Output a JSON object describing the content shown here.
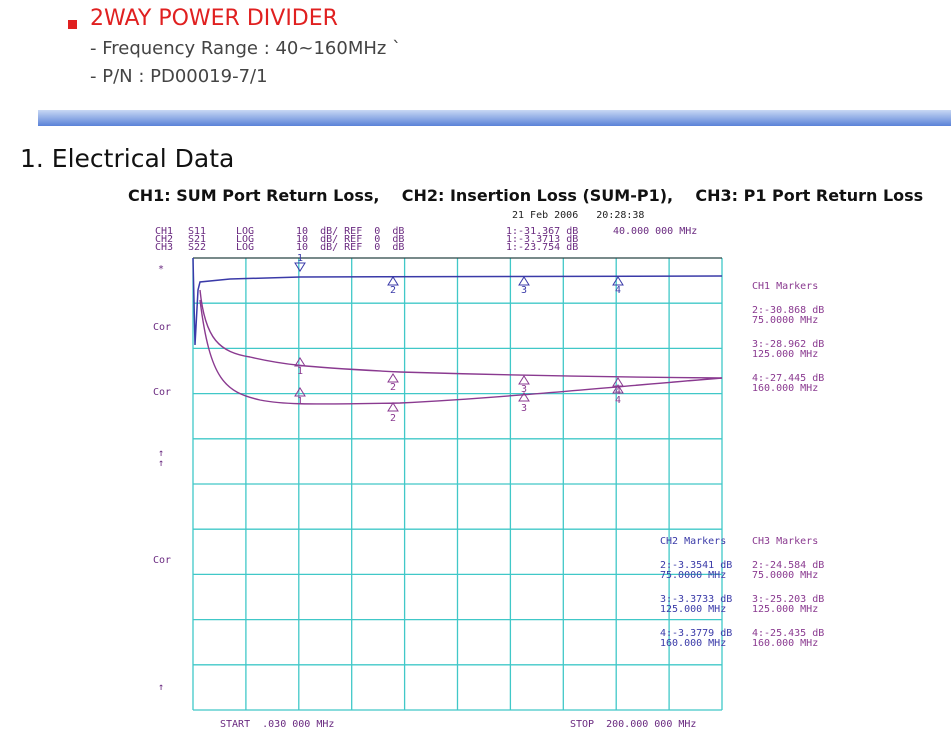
{
  "header": {
    "title": "2WAY POWER DIVIDER",
    "lines": [
      "- Frequency Range : 40~160MHz `",
      "- P/N : PD00019-7/1"
    ]
  },
  "section": {
    "title": "1. Electrical Data",
    "caption": "CH1: SUM Port Return Loss,    CH2: Insertion Loss (SUM-P1),    CH3: P1 Port Return Loss"
  },
  "plot": {
    "timestamp": "21 Feb 2006   20:28:38",
    "channels": [
      [
        "CH1",
        "S11",
        "LOG",
        "10  dB/ REF  0  dB",
        "1:-31.367 dB"
      ],
      [
        "CH2",
        "S21",
        "LOG",
        "10  dB/ REF  0  dB",
        "1:-3.3713 dB"
      ],
      [
        "CH3",
        "S22",
        "LOG",
        "10  dB/ REF  0  dB",
        "1:-23.754 dB"
      ]
    ],
    "marker_frequency": "40.000 000 MHz",
    "side_labels": [
      "*",
      "Cor",
      "Cor",
      "↑",
      "↑",
      "Cor",
      "↑"
    ],
    "marker_numbers": [
      "1",
      "2",
      "3",
      "4"
    ],
    "ch1_markers": {
      "title": "CH1 Markers",
      "entries": [
        [
          "2:-30.868 dB",
          "75.0000 MHz"
        ],
        [
          "3:-28.962 dB",
          "125.000 MHz"
        ],
        [
          "4:-27.445 dB",
          "160.000 MHz"
        ]
      ]
    },
    "ch2_markers": {
      "title": "CH2 Markers",
      "entries": [
        [
          "2:-3.3541 dB",
          "75.0000 MHz"
        ],
        [
          "3:-3.3733 dB",
          "125.000 MHz"
        ],
        [
          "4:-3.3779 dB",
          "160.000 MHz"
        ]
      ]
    },
    "ch3_markers": {
      "title": "CH3 Markers",
      "entries": [
        [
          "2:-24.584 dB",
          "75.0000 MHz"
        ],
        [
          "3:-25.203 dB",
          "125.000 MHz"
        ],
        [
          "4:-25.435 dB",
          "160.000 MHz"
        ]
      ]
    },
    "start": "START  .030 000 MHz",
    "stop": "STOP  200.000 000 MHz"
  }
}
